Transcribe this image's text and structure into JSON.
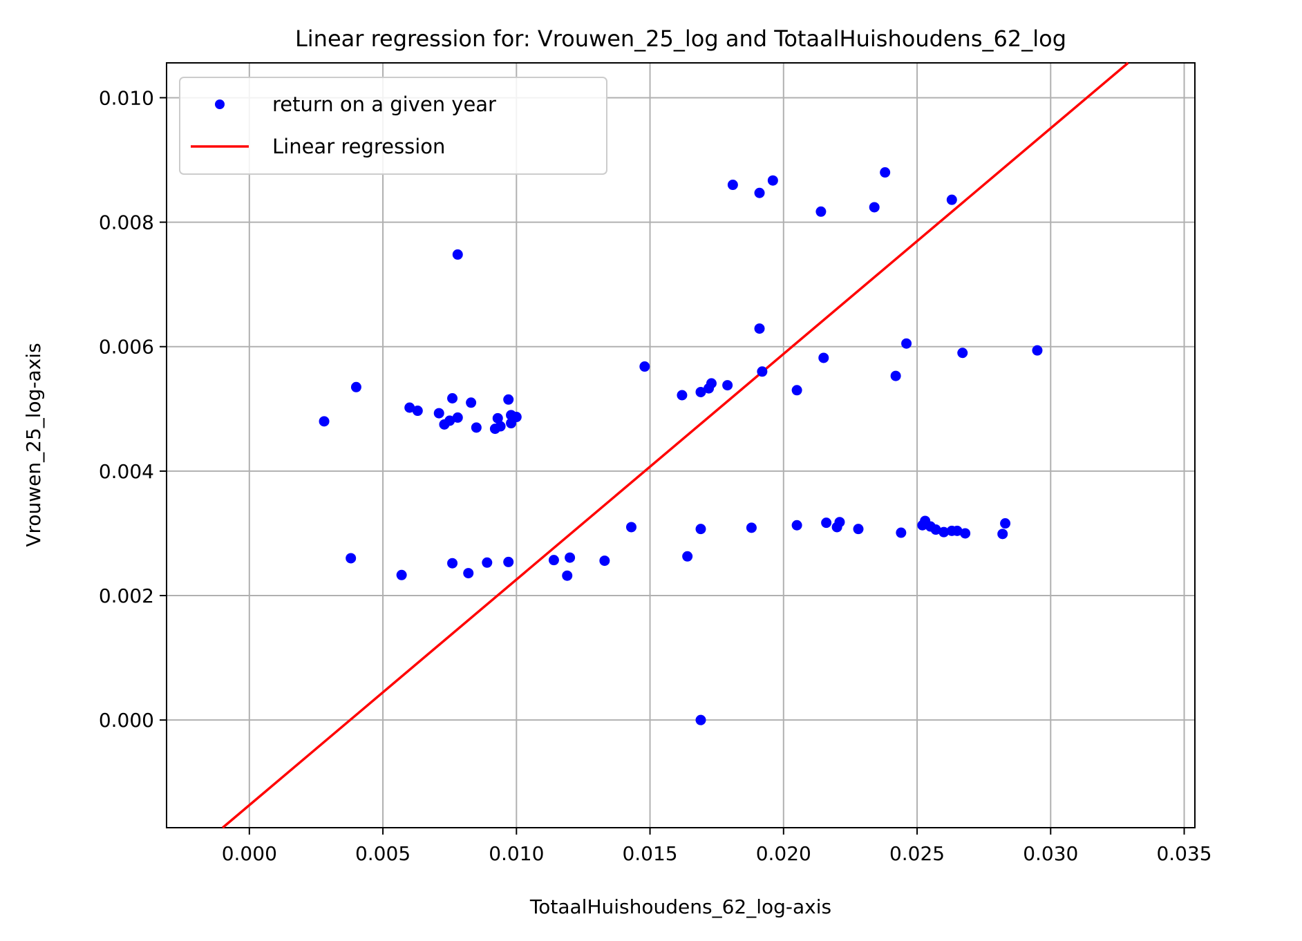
{
  "chart_data": {
    "type": "scatter",
    "title": "Linear regression for: Vrouwen_25_log and TotaalHuishoudens_62_log",
    "xlabel": "TotaalHuishoudens_62_log-axis",
    "ylabel": "Vrouwen_25_log-axis",
    "xlim": [
      -0.0031,
      0.0354
    ],
    "ylim": [
      -0.00173,
      0.01056
    ],
    "xticks": [
      0.0,
      0.005,
      0.01,
      0.015,
      0.02,
      0.025,
      0.03,
      0.035
    ],
    "xtick_labels": [
      "0.000",
      "0.005",
      "0.010",
      "0.015",
      "0.020",
      "0.025",
      "0.030",
      "0.035"
    ],
    "yticks": [
      0.0,
      0.002,
      0.004,
      0.006,
      0.008,
      0.01
    ],
    "ytick_labels": [
      "0.000",
      "0.002",
      "0.004",
      "0.006",
      "0.008",
      "0.010"
    ],
    "grid": true,
    "legend": {
      "position": "upper-left",
      "entries": [
        {
          "label": "return on a given year",
          "kind": "marker",
          "color": "#0000ff"
        },
        {
          "label": "Linear regression",
          "kind": "line",
          "color": "#ff0000"
        }
      ]
    },
    "series": [
      {
        "name": "return on a given year",
        "type": "scatter",
        "color": "#0000ff",
        "points": [
          [
            0.0028,
            0.0048
          ],
          [
            0.0038,
            0.0026
          ],
          [
            0.004,
            0.00535
          ],
          [
            0.0057,
            0.00233
          ],
          [
            0.006,
            0.00502
          ],
          [
            0.0063,
            0.00497
          ],
          [
            0.0071,
            0.00493
          ],
          [
            0.0073,
            0.00475
          ],
          [
            0.0075,
            0.00481
          ],
          [
            0.0076,
            0.00517
          ],
          [
            0.0078,
            0.00486
          ],
          [
            0.0078,
            0.00748
          ],
          [
            0.0076,
            0.00252
          ],
          [
            0.0082,
            0.00236
          ],
          [
            0.0083,
            0.0051
          ],
          [
            0.0085,
            0.0047
          ],
          [
            0.0089,
            0.00253
          ],
          [
            0.0092,
            0.00468
          ],
          [
            0.0093,
            0.00485
          ],
          [
            0.0094,
            0.00472
          ],
          [
            0.0097,
            0.00515
          ],
          [
            0.0097,
            0.00254
          ],
          [
            0.0098,
            0.0049
          ],
          [
            0.0098,
            0.00477
          ],
          [
            0.01,
            0.00487
          ],
          [
            0.0114,
            0.00257
          ],
          [
            0.0119,
            0.00232
          ],
          [
            0.012,
            0.00261
          ],
          [
            0.0133,
            0.00256
          ],
          [
            0.0143,
            0.0031
          ],
          [
            0.0148,
            0.00568
          ],
          [
            0.0162,
            0.00522
          ],
          [
            0.0164,
            0.00263
          ],
          [
            0.0169,
            0.00527
          ],
          [
            0.0169,
            0.00307
          ],
          [
            0.0169,
            0.0
          ],
          [
            0.0172,
            0.00533
          ],
          [
            0.0173,
            0.00541
          ],
          [
            0.0179,
            0.00538
          ],
          [
            0.0181,
            0.0086
          ],
          [
            0.0188,
            0.00309
          ],
          [
            0.0191,
            0.00847
          ],
          [
            0.0191,
            0.00629
          ],
          [
            0.0192,
            0.0056
          ],
          [
            0.0196,
            0.00867
          ],
          [
            0.0205,
            0.0053
          ],
          [
            0.0205,
            0.00313
          ],
          [
            0.0214,
            0.00817
          ],
          [
            0.0215,
            0.00582
          ],
          [
            0.0216,
            0.00317
          ],
          [
            0.022,
            0.0031
          ],
          [
            0.0221,
            0.00318
          ],
          [
            0.0228,
            0.00307
          ],
          [
            0.0234,
            0.00824
          ],
          [
            0.0238,
            0.0088
          ],
          [
            0.0242,
            0.00553
          ],
          [
            0.0244,
            0.00301
          ],
          [
            0.0246,
            0.00605
          ],
          [
            0.0252,
            0.00313
          ],
          [
            0.0253,
            0.0032
          ],
          [
            0.0255,
            0.00311
          ],
          [
            0.0257,
            0.00306
          ],
          [
            0.026,
            0.00302
          ],
          [
            0.0263,
            0.00836
          ],
          [
            0.0263,
            0.00304
          ],
          [
            0.0265,
            0.00304
          ],
          [
            0.0267,
            0.0059
          ],
          [
            0.0268,
            0.003
          ],
          [
            0.0282,
            0.00299
          ],
          [
            0.0283,
            0.00316
          ],
          [
            0.0295,
            0.00594
          ]
        ]
      },
      {
        "name": "Linear regression",
        "type": "line",
        "color": "#ff0000",
        "points": [
          [
            -0.001,
            -0.00173
          ],
          [
            0.0329,
            0.01056
          ]
        ]
      }
    ]
  }
}
